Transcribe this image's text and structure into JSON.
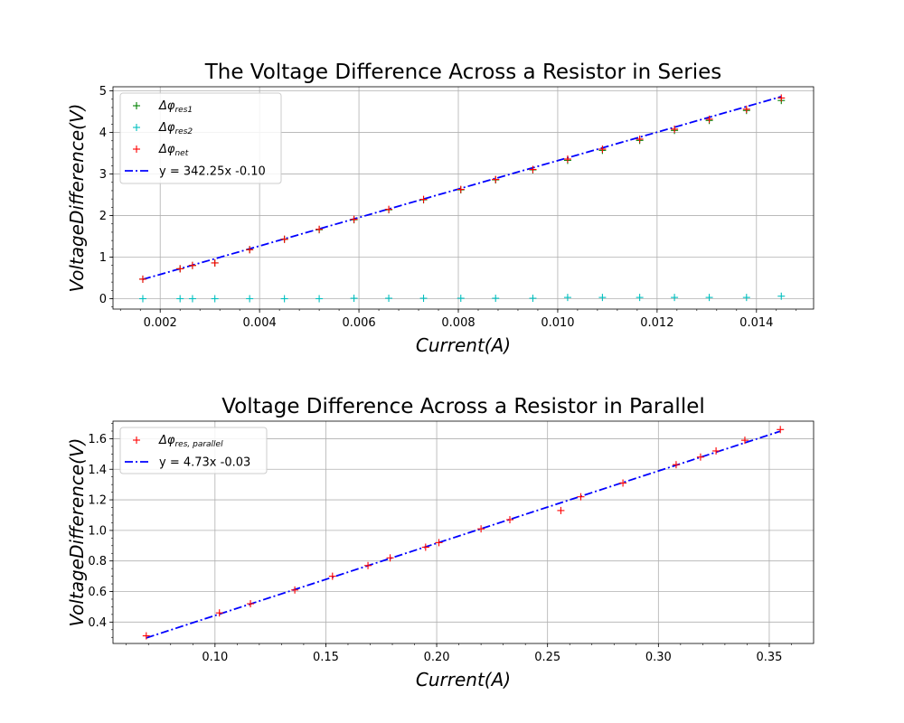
{
  "chart_data": [
    {
      "type": "scatter",
      "title": "The Voltage Difference Across a Resistor in Series",
      "xlabel": "Current(A)",
      "ylabel": "VoltageDifference(V)",
      "xlim": [
        0.00105,
        0.01515
      ],
      "ylim": [
        -0.25,
        5.1
      ],
      "x_ticks": [
        "0.002",
        "0.004",
        "0.006",
        "0.008",
        "0.010",
        "0.012",
        "0.014"
      ],
      "x_tick_values": [
        0.002,
        0.004,
        0.006,
        0.008,
        0.01,
        0.012,
        0.014
      ],
      "y_ticks": [
        "0",
        "1",
        "2",
        "3",
        "4",
        "5"
      ],
      "y_tick_values": [
        0,
        1,
        2,
        3,
        4,
        5
      ],
      "grid": true,
      "legend_position": "top-left",
      "series": [
        {
          "name": "Δφ",
          "name_sub": "res1",
          "marker": "+",
          "color": "#008000",
          "x": [
            0.00165,
            0.0024,
            0.00265,
            0.0031,
            0.0038,
            0.0045,
            0.0052,
            0.0059,
            0.0066,
            0.0073,
            0.00805,
            0.00875,
            0.0095,
            0.0102,
            0.0109,
            0.01165,
            0.01235,
            0.01305,
            0.0138,
            0.0145
          ],
          "y": [
            0.47,
            0.72,
            0.8,
            0.86,
            1.18,
            1.43,
            1.66,
            1.9,
            2.14,
            2.38,
            2.62,
            2.86,
            3.1,
            3.33,
            3.57,
            3.81,
            4.05,
            4.29,
            4.53,
            4.77
          ]
        },
        {
          "name": "Δφ",
          "name_sub": "res2",
          "marker": "+",
          "color": "#00bfbf",
          "x": [
            0.00165,
            0.0024,
            0.00265,
            0.0031,
            0.0038,
            0.0045,
            0.0052,
            0.0059,
            0.0066,
            0.0073,
            0.00805,
            0.00875,
            0.0095,
            0.0102,
            0.0109,
            0.01165,
            0.01235,
            0.01305,
            0.0138,
            0.0145
          ],
          "y": [
            0.0,
            0.0,
            0.0,
            0.0,
            0.0,
            0.0,
            0.0,
            0.01,
            0.01,
            0.01,
            0.01,
            0.01,
            0.01,
            0.03,
            0.03,
            0.03,
            0.03,
            0.03,
            0.03,
            0.06
          ]
        },
        {
          "name": "Δφ",
          "name_sub": "net",
          "marker": "+",
          "color": "#ff0000",
          "x": [
            0.00165,
            0.0024,
            0.00265,
            0.0031,
            0.0038,
            0.0045,
            0.0052,
            0.0059,
            0.0066,
            0.0073,
            0.00805,
            0.00875,
            0.0095,
            0.0102,
            0.0109,
            0.01165,
            0.01235,
            0.01305,
            0.0138,
            0.0145
          ],
          "y": [
            0.47,
            0.72,
            0.8,
            0.86,
            1.18,
            1.43,
            1.67,
            1.91,
            2.15,
            2.39,
            2.63,
            2.87,
            3.11,
            3.36,
            3.6,
            3.84,
            4.08,
            4.32,
            4.56,
            4.83
          ]
        }
      ],
      "fit": {
        "label": "y = 342.25x  -0.10",
        "slope": 342.25,
        "intercept": -0.1,
        "x_range": [
          0.00165,
          0.0145
        ],
        "color": "#0000ff",
        "style": "dash-dot"
      }
    },
    {
      "type": "scatter",
      "title": "Voltage Difference Across a Resistor in Parallel",
      "xlabel": "Current(A)",
      "ylabel": "VoltageDifference(V)",
      "xlim": [
        0.054,
        0.37
      ],
      "ylim": [
        0.26,
        1.715
      ],
      "x_ticks": [
        "0.10",
        "0.15",
        "0.20",
        "0.25",
        "0.30",
        "0.35"
      ],
      "x_tick_values": [
        0.1,
        0.15,
        0.2,
        0.25,
        0.3,
        0.35
      ],
      "y_ticks": [
        "0.4",
        "0.6",
        "0.8",
        "1.0",
        "1.2",
        "1.4",
        "1.6"
      ],
      "y_tick_values": [
        0.4,
        0.6,
        0.8,
        1.0,
        1.2,
        1.4,
        1.6
      ],
      "grid": true,
      "legend_position": "top-left",
      "series": [
        {
          "name": "Δφ",
          "name_sub": "res, parallel",
          "marker": "+",
          "color": "#ff0000",
          "x": [
            0.069,
            0.102,
            0.116,
            0.136,
            0.153,
            0.169,
            0.179,
            0.195,
            0.201,
            0.22,
            0.233,
            0.256,
            0.265,
            0.284,
            0.308,
            0.319,
            0.326,
            0.339,
            0.355
          ],
          "y": [
            0.31,
            0.46,
            0.52,
            0.61,
            0.7,
            0.77,
            0.82,
            0.89,
            0.92,
            1.01,
            1.07,
            1.13,
            1.22,
            1.31,
            1.43,
            1.48,
            1.52,
            1.59,
            1.66
          ]
        }
      ],
      "fit": {
        "label": "y = 4.73x  -0.03",
        "slope": 4.73,
        "intercept": -0.03,
        "x_range": [
          0.069,
          0.355
        ],
        "color": "#0000ff",
        "style": "dash-dot"
      }
    }
  ]
}
